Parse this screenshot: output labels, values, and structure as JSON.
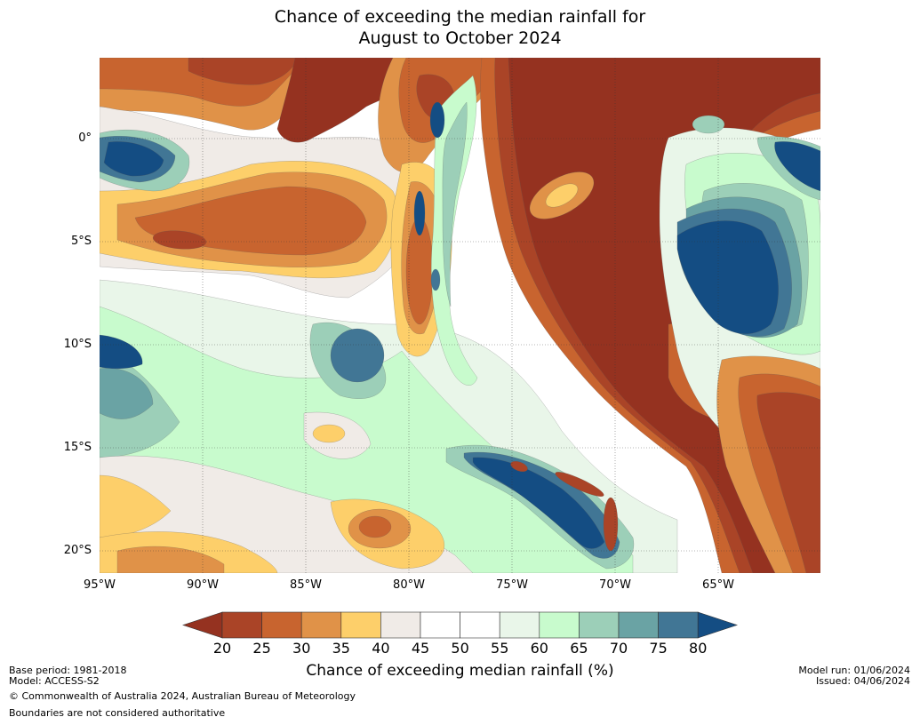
{
  "title": {
    "line1": "Chance of exceeding the median rainfall for",
    "line2": "August to October 2024"
  },
  "map": {
    "lat_labels": [
      "0°",
      "5°S",
      "10°S",
      "15°S",
      "20°S"
    ],
    "lon_labels": [
      "95°W",
      "90°W",
      "85°W",
      "80°W",
      "75°W",
      "70°W",
      "65°W"
    ],
    "colors": {
      "c15": "#953220",
      "c20": "#aa4427",
      "c25": "#c8642f",
      "c30": "#e09248",
      "c35": "#fdcf6a",
      "c40": "#f0ebe7",
      "c45": "#ffffff",
      "c55": "#e9f6e9",
      "c60": "#c8fbcd",
      "c65": "#9ccfb8",
      "c70": "#6aa3a4",
      "c75": "#417695",
      "c80": "#144d83"
    }
  },
  "colorbar": {
    "ticks": [
      "20",
      "25",
      "30",
      "35",
      "40",
      "45",
      "50",
      "55",
      "60",
      "65",
      "70",
      "75",
      "80"
    ],
    "colors": [
      "#953220",
      "#aa4427",
      "#c8642f",
      "#e09248",
      "#fdcf6a",
      "#f0ebe7",
      "#ffffff",
      "#ffffff",
      "#e9f6e9",
      "#c8fbcd",
      "#9ccfb8",
      "#6aa3a4",
      "#417695",
      "#144d83"
    ],
    "label": "Chance of exceeding median rainfall (%)"
  },
  "footer": {
    "base_period": "Base period: 1981-2018",
    "model": "Model: ACCESS-S2",
    "copyright": "© Commonwealth of Australia 2024, Australian Bureau of Meteorology",
    "boundaries": "Boundaries are not considered authoritative",
    "model_run": "Model run: 01/06/2024",
    "issued": "Issued: 04/06/2024"
  }
}
